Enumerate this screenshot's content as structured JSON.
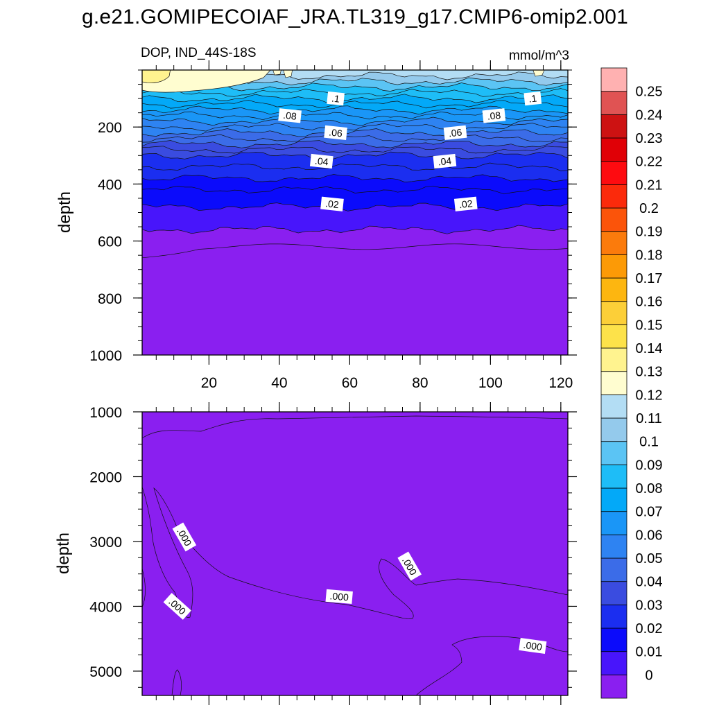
{
  "title": "g.e21.GOMIPECOIAF_JRA.TL319_g17.CMIP6-omip2.001",
  "chart_data": {
    "type": "heatmap",
    "subtitle": "DOP, IND_44S-18S",
    "units": "mmol/m^3",
    "ylabel": "depth",
    "xrange": [
      1,
      122
    ],
    "x_ticks": [
      20,
      40,
      60,
      80,
      100,
      120
    ],
    "panels": [
      {
        "name": "upper",
        "ylim": [
          0,
          1000
        ],
        "y_ticks": [
          200,
          400,
          600,
          800,
          1000
        ],
        "show_x_tick_labels": true,
        "layer_depths": [
          20,
          40,
          60,
          80,
          100,
          120,
          140,
          160,
          180,
          200,
          220,
          240,
          260,
          280,
          300,
          340,
          380,
          420,
          480,
          560,
          620,
          1000
        ],
        "layer_values": [
          0.125,
          0.115,
          0.105,
          0.095,
          0.09,
          0.085,
          0.08,
          0.075,
          0.07,
          0.065,
          0.06,
          0.055,
          0.05,
          0.045,
          0.04,
          0.035,
          0.03,
          0.025,
          0.02,
          0.015,
          0.005,
          0.005
        ],
        "contour_labels": [
          {
            "text": ".1",
            "x": 56,
            "y": 100
          },
          {
            "text": ".1",
            "x": 112,
            "y": 100
          },
          {
            "text": ".08",
            "x": 43,
            "y": 160
          },
          {
            "text": ".08",
            "x": 101,
            "y": 160
          },
          {
            "text": ".06",
            "x": 56,
            "y": 220
          },
          {
            "text": ".06",
            "x": 90,
            "y": 220
          },
          {
            "text": ".04",
            "x": 52,
            "y": 320
          },
          {
            "text": ".04",
            "x": 87,
            "y": 320
          },
          {
            "text": ".02",
            "x": 55,
            "y": 470
          },
          {
            "text": ".02",
            "x": 93,
            "y": 470
          }
        ]
      },
      {
        "name": "lower",
        "ylim": [
          1000,
          5375
        ],
        "y_ticks": [
          1000,
          2000,
          3000,
          4000,
          5000
        ],
        "show_x_tick_labels": false,
        "background_value": 0.005,
        "near_zero_value": 0,
        "contour_labels": [
          {
            "text": ".000",
            "x": 13,
            "y": 2930
          },
          {
            "text": ".000",
            "x": 11,
            "y": 4000
          },
          {
            "text": ".000",
            "x": 57,
            "y": 3850
          },
          {
            "text": ".000",
            "x": 77,
            "y": 3380
          },
          {
            "text": ".000",
            "x": 112,
            "y": 4610
          }
        ]
      }
    ],
    "colorbar": {
      "labels": [
        "0",
        "0.01",
        "0.02",
        "0.03",
        "0.04",
        "0.05",
        "0.06",
        "0.07",
        "0.08",
        "0.09",
        "0.1",
        "0.11",
        "0.12",
        "0.13",
        "0.14",
        "0.15",
        "0.16",
        "0.17",
        "0.18",
        "0.19",
        "0.2",
        "0.21",
        "0.22",
        "0.23",
        "0.24",
        "0.25"
      ],
      "colors": [
        "#8a1ff0",
        "#4815fb",
        "#0b0bfb",
        "#1b2ef0",
        "#3a4ce0",
        "#3b6ce8",
        "#2e83f2",
        "#1a96f7",
        "#03a9f8",
        "#1ebdf7",
        "#5bc4f4",
        "#94caec",
        "#b3ddf4",
        "#fffdd0",
        "#fff38f",
        "#fde24a",
        "#fccf38",
        "#fdb610",
        "#fc9a06",
        "#fb7b0c",
        "#fb540a",
        "#fb2a0b",
        "#fe0b10",
        "#e00006",
        "#cd1212",
        "#e05353",
        "#ffb1b1"
      ]
    }
  }
}
